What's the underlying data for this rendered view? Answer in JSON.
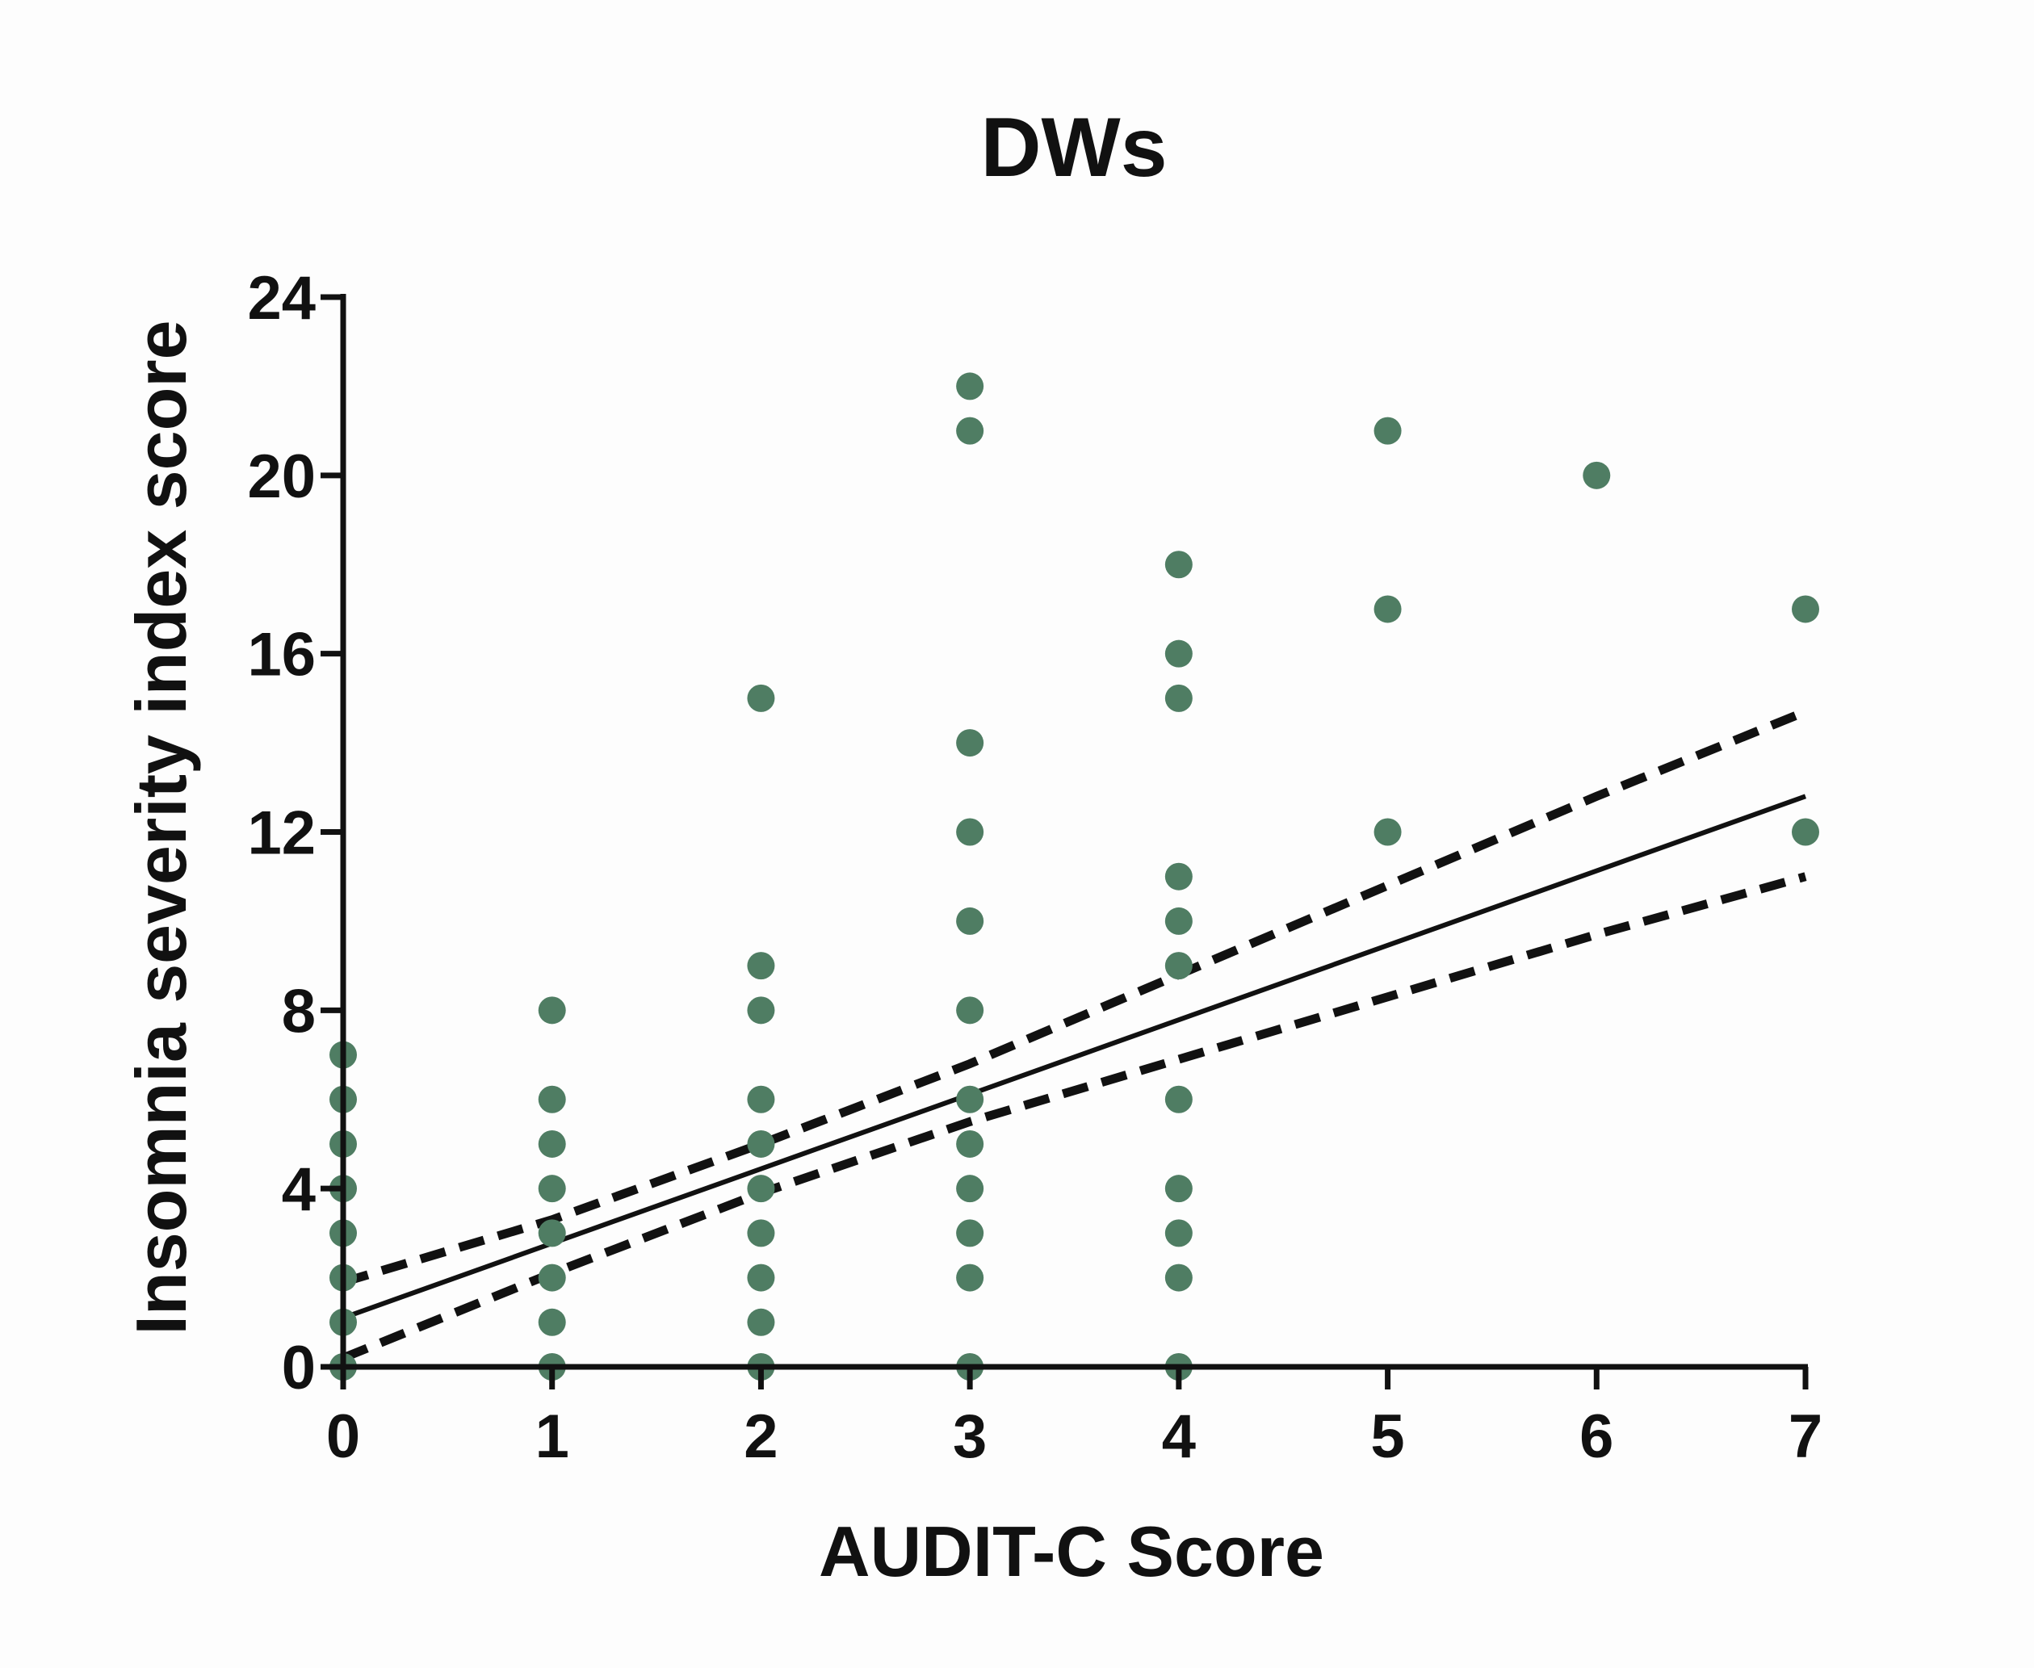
{
  "chart_data": {
    "type": "scatter",
    "title": "DWs",
    "xlabel": "AUDIT-C Score",
    "ylabel": "Insomnia severity index score",
    "xlim": [
      0,
      7
    ],
    "ylim": [
      0,
      24
    ],
    "xticks": [
      0,
      1,
      2,
      3,
      4,
      5,
      6,
      7
    ],
    "yticks": [
      0,
      4,
      8,
      12,
      16,
      20,
      24
    ],
    "grid": false,
    "colors": {
      "points": "#4f7d63",
      "lines": "#111111",
      "axes": "#111111"
    },
    "points": [
      {
        "x": 0,
        "y": 0
      },
      {
        "x": 0,
        "y": 1
      },
      {
        "x": 0,
        "y": 2
      },
      {
        "x": 0,
        "y": 3
      },
      {
        "x": 0,
        "y": 4
      },
      {
        "x": 0,
        "y": 5
      },
      {
        "x": 0,
        "y": 6
      },
      {
        "x": 0,
        "y": 7
      },
      {
        "x": 1,
        "y": 0
      },
      {
        "x": 1,
        "y": 1
      },
      {
        "x": 1,
        "y": 2
      },
      {
        "x": 1,
        "y": 3
      },
      {
        "x": 1,
        "y": 4
      },
      {
        "x": 1,
        "y": 5
      },
      {
        "x": 1,
        "y": 6
      },
      {
        "x": 1,
        "y": 8
      },
      {
        "x": 2,
        "y": 0
      },
      {
        "x": 2,
        "y": 1
      },
      {
        "x": 2,
        "y": 2
      },
      {
        "x": 2,
        "y": 3
      },
      {
        "x": 2,
        "y": 4
      },
      {
        "x": 2,
        "y": 5
      },
      {
        "x": 2,
        "y": 6
      },
      {
        "x": 2,
        "y": 8
      },
      {
        "x": 2,
        "y": 9
      },
      {
        "x": 2,
        "y": 15
      },
      {
        "x": 3,
        "y": 0
      },
      {
        "x": 3,
        "y": 2
      },
      {
        "x": 3,
        "y": 3
      },
      {
        "x": 3,
        "y": 4
      },
      {
        "x": 3,
        "y": 5
      },
      {
        "x": 3,
        "y": 6
      },
      {
        "x": 3,
        "y": 8
      },
      {
        "x": 3,
        "y": 10
      },
      {
        "x": 3,
        "y": 12
      },
      {
        "x": 3,
        "y": 14
      },
      {
        "x": 3,
        "y": 21
      },
      {
        "x": 3,
        "y": 22
      },
      {
        "x": 4,
        "y": 0
      },
      {
        "x": 4,
        "y": 2
      },
      {
        "x": 4,
        "y": 3
      },
      {
        "x": 4,
        "y": 4
      },
      {
        "x": 4,
        "y": 6
      },
      {
        "x": 4,
        "y": 9
      },
      {
        "x": 4,
        "y": 10
      },
      {
        "x": 4,
        "y": 11
      },
      {
        "x": 4,
        "y": 15
      },
      {
        "x": 4,
        "y": 16
      },
      {
        "x": 4,
        "y": 18
      },
      {
        "x": 5,
        "y": 12
      },
      {
        "x": 5,
        "y": 17
      },
      {
        "x": 5,
        "y": 21
      },
      {
        "x": 6,
        "y": 20
      },
      {
        "x": 7,
        "y": 12
      },
      {
        "x": 7,
        "y": 17
      }
    ],
    "regression": {
      "x": [
        0,
        7
      ],
      "y": [
        1.1,
        12.8
      ]
    },
    "confidence_band": {
      "upper": {
        "x": [
          0,
          1,
          2,
          3,
          4,
          5,
          6,
          7
        ],
        "y": [
          1.9,
          3.3,
          5.0,
          6.8,
          8.8,
          10.8,
          12.8,
          14.7
        ]
      },
      "lower": {
        "x": [
          0,
          1,
          2,
          3,
          4,
          5,
          6,
          7
        ],
        "y": [
          0.2,
          2.1,
          3.9,
          5.5,
          6.9,
          8.3,
          9.7,
          11.0
        ]
      }
    }
  }
}
